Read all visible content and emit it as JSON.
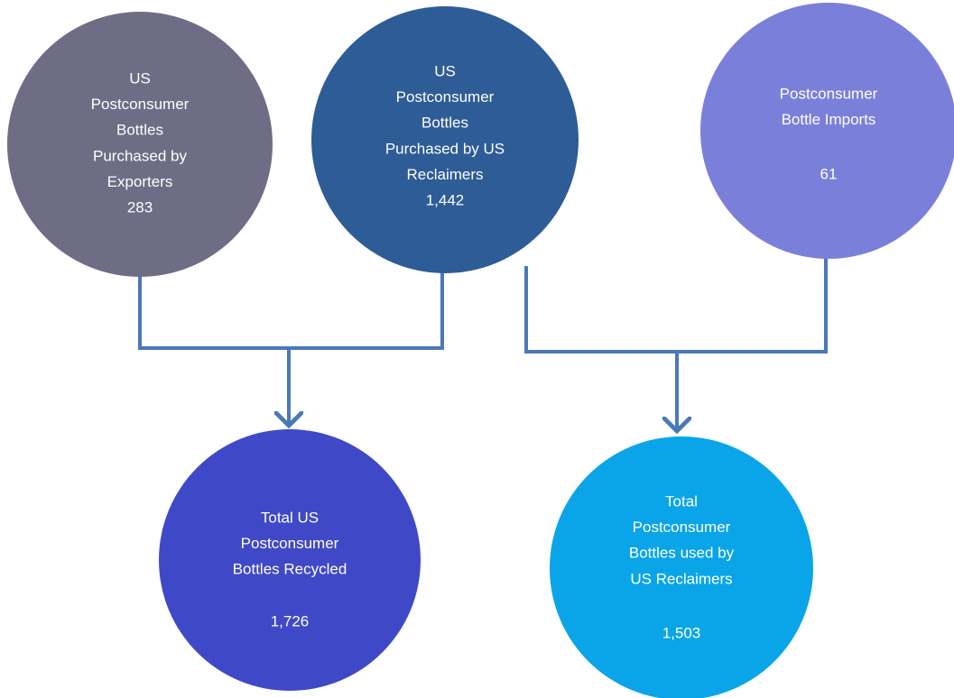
{
  "nodes": [
    {
      "label": [
        "US",
        "Postconsumer",
        "Bottles",
        "Purchased by",
        "Exporters"
      ],
      "value": "283"
    },
    {
      "label": [
        "US",
        "Postconsumer",
        "Bottles",
        "Purchased by US",
        "Reclaimers"
      ],
      "value": "1,442"
    },
    {
      "label": [
        "Postconsumer",
        "Bottle Imports"
      ],
      "value": "61"
    },
    {
      "label": [
        "Total US",
        "Postconsumer",
        "Bottles Recycled"
      ],
      "value": "1,726"
    },
    {
      "label": [
        "Total",
        "Postconsumer",
        "Bottles used by",
        "US Reclaimers"
      ],
      "value": "1,503"
    }
  ]
}
